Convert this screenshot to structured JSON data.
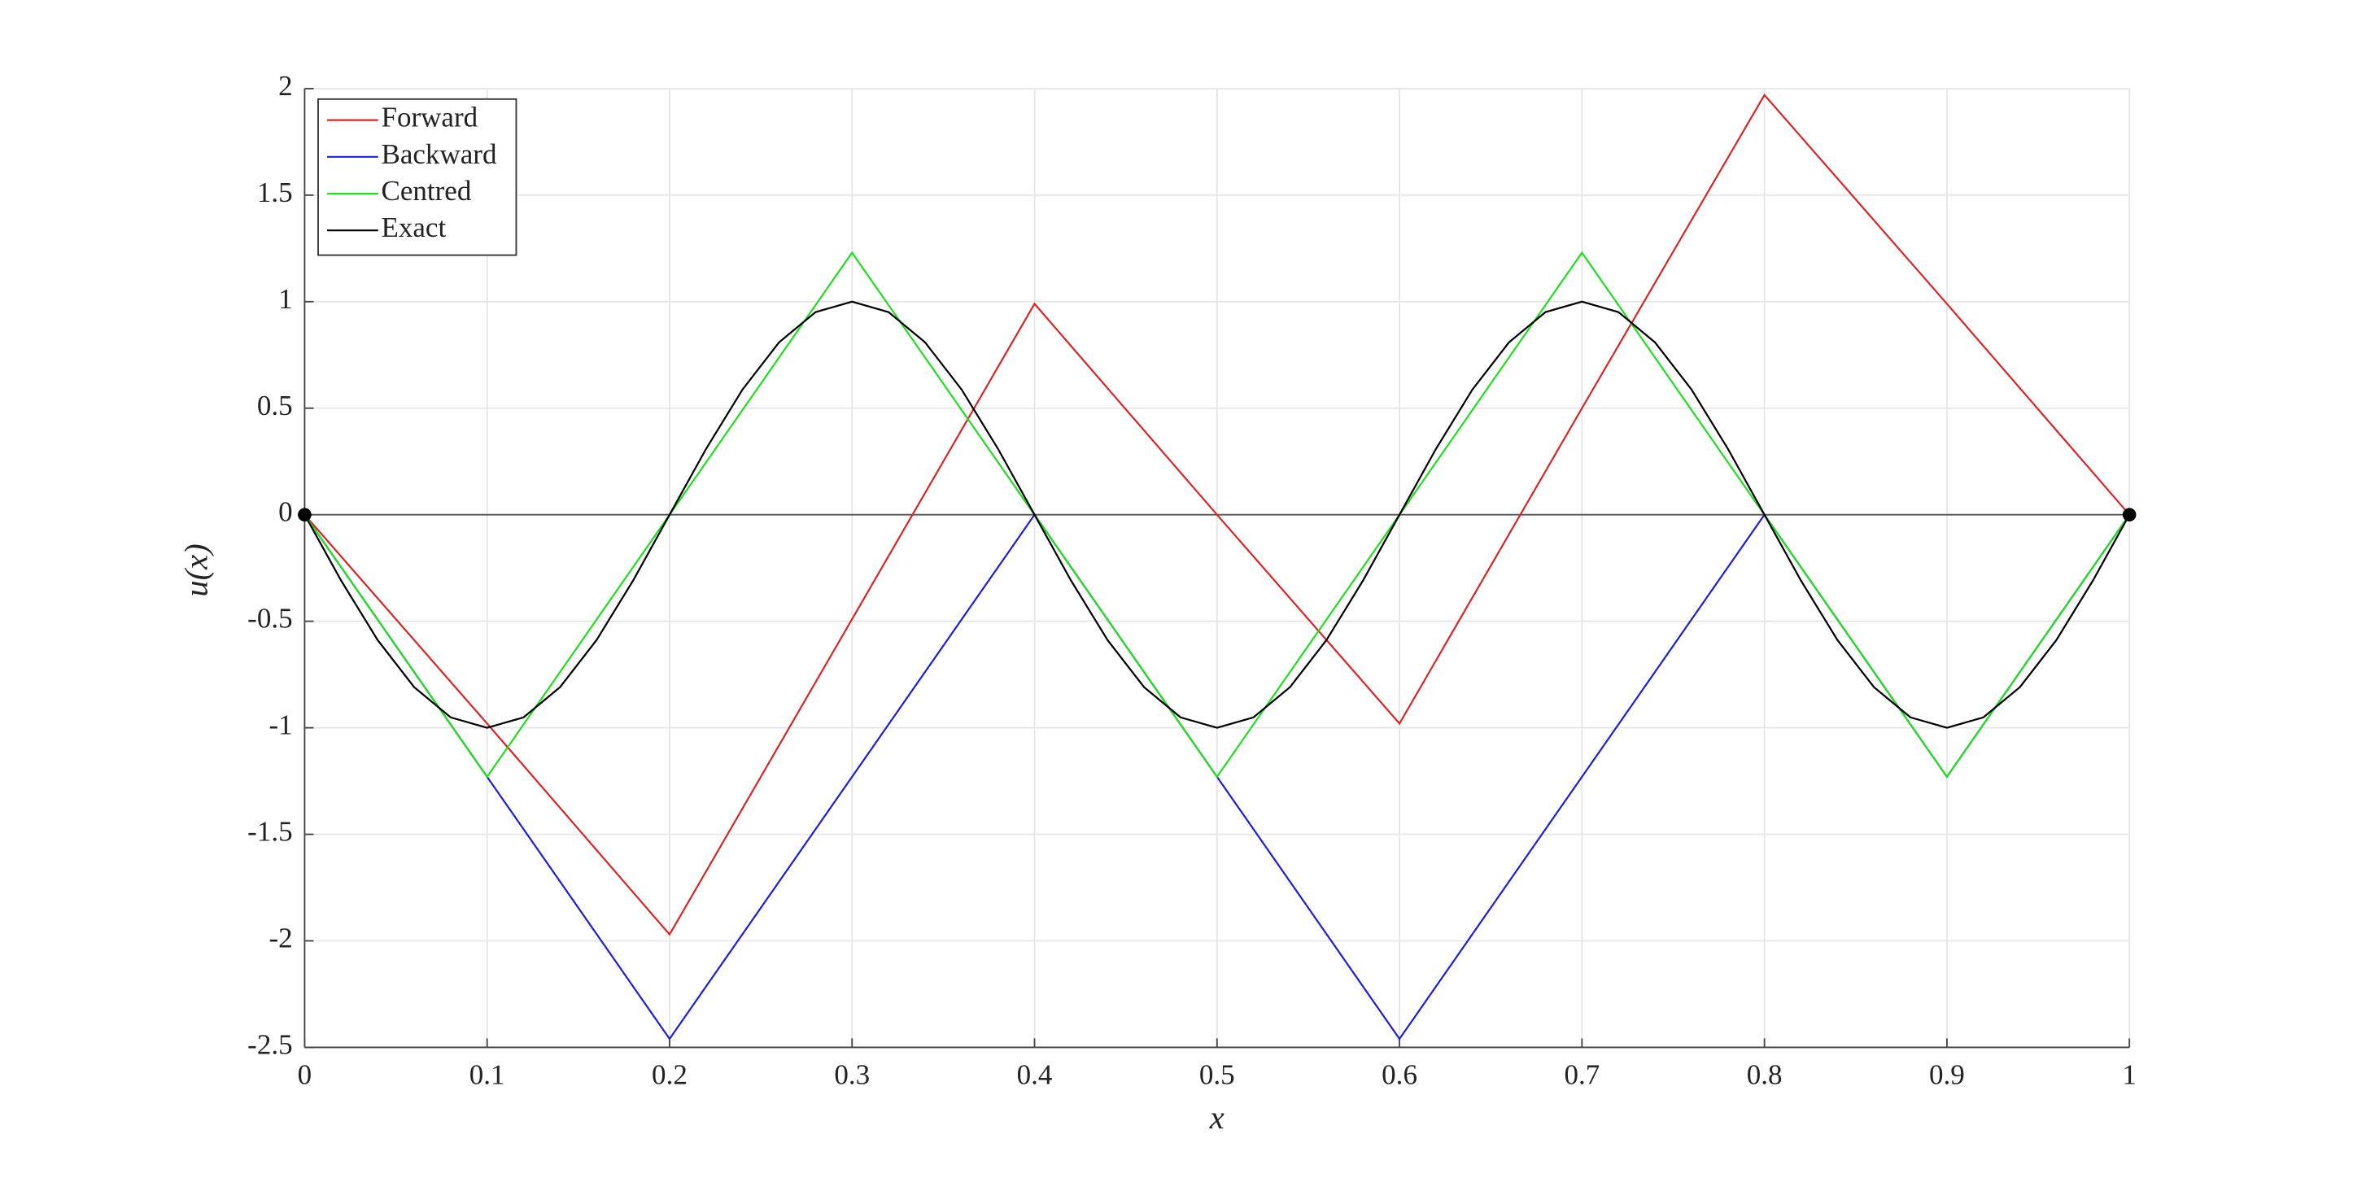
{
  "chart_data": {
    "type": "line",
    "xlabel": "x",
    "ylabel": "u(x)",
    "xlim": [
      0,
      1
    ],
    "xticks": [
      0,
      0.1,
      0.2,
      0.3,
      0.4,
      0.5,
      0.6,
      0.7,
      0.8,
      0.9,
      1
    ],
    "ylim": [
      -2.5,
      2
    ],
    "yticks": [
      -2.5,
      -2,
      -1.5,
      -1,
      -0.5,
      0,
      0.5,
      1,
      1.5,
      2
    ],
    "grid": true,
    "legend": "upper-left",
    "series": [
      {
        "name": "Forward",
        "color": "#d62728",
        "x": [
          0,
          0.1,
          0.2,
          0.3,
          0.4,
          0.5,
          0.6,
          0.7,
          0.8,
          0.9,
          1
        ],
        "values": [
          0,
          -0.98,
          -1.97,
          -0.49,
          0.99,
          0,
          -0.98,
          0.5,
          1.97,
          0.99,
          0
        ]
      },
      {
        "name": "Backward",
        "color": "#1f1fd0",
        "x": [
          0,
          0.1,
          0.2,
          0.3,
          0.4,
          0.5,
          0.6,
          0.7,
          0.8,
          0.9,
          1
        ],
        "values": [
          0,
          -1.23,
          -2.46,
          -1.23,
          0,
          -1.23,
          -2.46,
          -1.23,
          0,
          -1.23,
          0
        ]
      },
      {
        "name": "Centred",
        "color": "#22dd22",
        "x": [
          0,
          0.1,
          0.2,
          0.3,
          0.4,
          0.5,
          0.6,
          0.7,
          0.8,
          0.9,
          1
        ],
        "values": [
          0,
          -1.23,
          0,
          1.23,
          0,
          -1.23,
          0,
          1.23,
          0,
          -1.23,
          0
        ]
      },
      {
        "name": "Exact",
        "color": "#000000",
        "x": [
          0,
          0.02,
          0.04,
          0.06,
          0.08,
          0.1,
          0.12,
          0.14,
          0.16,
          0.18,
          0.2,
          0.22,
          0.24,
          0.26,
          0.28,
          0.3,
          0.32,
          0.34,
          0.36,
          0.38,
          0.4,
          0.42,
          0.44,
          0.46,
          0.48,
          0.5,
          0.52,
          0.54,
          0.56,
          0.58,
          0.6,
          0.62,
          0.64,
          0.66,
          0.68,
          0.7,
          0.72,
          0.74,
          0.76,
          0.78,
          0.8,
          0.82,
          0.84,
          0.86,
          0.88,
          0.9,
          0.92,
          0.94,
          0.96,
          0.98,
          1
        ],
        "values": [
          0,
          -0.309,
          -0.588,
          -0.809,
          -0.951,
          -1,
          -0.951,
          -0.809,
          -0.588,
          -0.309,
          0,
          0.309,
          0.588,
          0.809,
          0.951,
          1,
          0.951,
          0.809,
          0.588,
          0.309,
          0,
          -0.309,
          -0.588,
          -0.809,
          -0.951,
          -1,
          -0.951,
          -0.809,
          -0.588,
          -0.309,
          0,
          0.309,
          0.588,
          0.809,
          0.951,
          1,
          0.951,
          0.809,
          0.588,
          0.309,
          0,
          -0.309,
          -0.588,
          -0.809,
          -0.951,
          -1,
          -0.951,
          -0.809,
          -0.588,
          -0.309,
          0
        ]
      }
    ],
    "points": {
      "color": "#000000",
      "x": [
        0,
        1
      ],
      "values": [
        0,
        0
      ]
    }
  }
}
